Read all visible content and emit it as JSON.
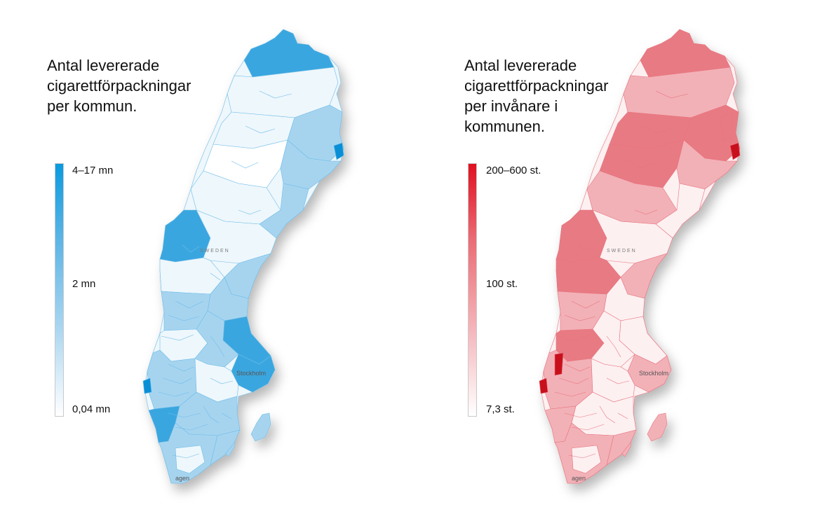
{
  "maps": [
    {
      "title": "Antal levererade\ncigarettförpackningar\nper kommun.",
      "legend": {
        "max_label": "4–17 mn",
        "mid_label": "2 mn",
        "min_label": "0,04 mn"
      },
      "palette": {
        "light": "#eef7fc",
        "mid": "#a6d4ef",
        "dark": "#3aa6df",
        "max": "#0a8fd6",
        "border": "#6fbde8"
      },
      "labels": {
        "country": "SWEDEN",
        "city": "Stockholm",
        "city_south": "agen"
      }
    },
    {
      "title": "Antal levererade\ncigarettförpackningar\nper invånare i\nkommunen.",
      "legend": {
        "max_label": "200–600 st.",
        "mid_label": "100 st.",
        "min_label": "7,3 st."
      },
      "palette": {
        "light": "#fdf0f1",
        "mid": "#f2b1b7",
        "dark": "#e87a83",
        "max": "#c8101c",
        "border": "#e8747e"
      },
      "labels": {
        "country": "SWEDEN",
        "city": "Stockholm",
        "city_south": "agen"
      }
    }
  ]
}
